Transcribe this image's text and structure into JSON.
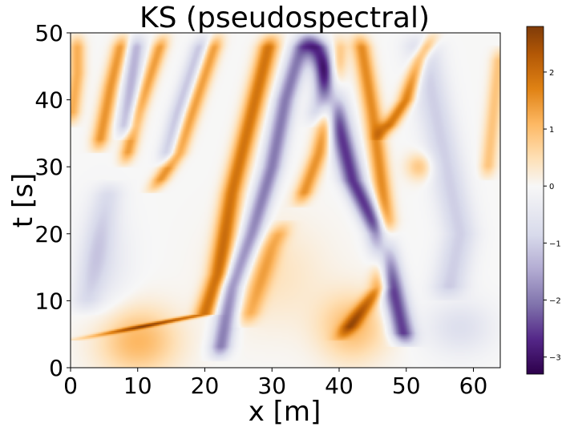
{
  "chart_data": {
    "type": "heatmap",
    "title": "KS (pseudospectral)",
    "xlabel": "x [m]",
    "ylabel": "t [s]",
    "xlim": [
      0,
      64
    ],
    "ylim": [
      0,
      50
    ],
    "xticks": [
      "0",
      "10",
      "20",
      "30",
      "40",
      "50",
      "60"
    ],
    "yticks": [
      "0",
      "10",
      "20",
      "30",
      "40",
      "50"
    ],
    "colorbar": {
      "range": [
        -3.3,
        2.8
      ],
      "ticks": [
        "2",
        "1",
        "0",
        "−1",
        "−2",
        "−3"
      ],
      "colormap": "PuOr_r",
      "colors": [
        "#2d004b",
        "#542788",
        "#8073ac",
        "#b2abd2",
        "#d8daeb",
        "#f7f7f7",
        "#fee0b6",
        "#fdb863",
        "#e08214",
        "#b35806",
        "#7f3b08"
      ]
    },
    "ridges": [
      {
        "sign": 1,
        "amp": 1.9,
        "width": 1.6,
        "points": [
          [
            0,
            4
          ],
          [
            20,
            8
          ],
          [
            22,
            14
          ],
          [
            24,
            26
          ],
          [
            26,
            34
          ],
          [
            28,
            42
          ],
          [
            30,
            50
          ]
        ]
      },
      {
        "sign": 1,
        "amp": 1.5,
        "width": 1.3,
        "points": [
          [
            12,
            26
          ],
          [
            16,
            32
          ],
          [
            18,
            38
          ],
          [
            20,
            44
          ],
          [
            22,
            50
          ]
        ]
      },
      {
        "sign": 1,
        "amp": 1.4,
        "width": 1.2,
        "points": [
          [
            8,
            30
          ],
          [
            10,
            38
          ],
          [
            12,
            44
          ],
          [
            14,
            50
          ]
        ]
      },
      {
        "sign": 1,
        "amp": 1.5,
        "width": 1.3,
        "points": [
          [
            4,
            32
          ],
          [
            6,
            42
          ],
          [
            8,
            50
          ]
        ]
      },
      {
        "sign": 1,
        "amp": 1.6,
        "width": 1.4,
        "points": [
          [
            40,
            4
          ],
          [
            46,
            12
          ],
          [
            47,
            22
          ],
          [
            46,
            30
          ],
          [
            45,
            38
          ],
          [
            44,
            44
          ],
          [
            43,
            50
          ]
        ]
      },
      {
        "sign": 1,
        "amp": 1.5,
        "width": 1.4,
        "points": [
          [
            34,
            24
          ],
          [
            37,
            32
          ],
          [
            39,
            40
          ],
          [
            40,
            50
          ]
        ]
      },
      {
        "sign": 1,
        "amp": 1.8,
        "width": 1.3,
        "points": [
          [
            46,
            34
          ],
          [
            50,
            40
          ],
          [
            52,
            46
          ],
          [
            54,
            50
          ]
        ]
      },
      {
        "sign": 1,
        "amp": 1.0,
        "width": 1.6,
        "points": [
          [
            26,
            6
          ],
          [
            28,
            12
          ],
          [
            30,
            18
          ],
          [
            32,
            22
          ]
        ]
      },
      {
        "sign": 1,
        "amp": 1.2,
        "width": 1.2,
        "points": [
          [
            0,
            36
          ],
          [
            1,
            44
          ],
          [
            1,
            50
          ]
        ]
      },
      {
        "sign": 1,
        "amp": 0.9,
        "width": 1.2,
        "points": [
          [
            62,
            28
          ],
          [
            63,
            38
          ],
          [
            64,
            48
          ]
        ]
      },
      {
        "sign": -1,
        "amp": 2.0,
        "width": 1.6,
        "points": [
          [
            22,
            1
          ],
          [
            24,
            12
          ],
          [
            27,
            20
          ],
          [
            30,
            30
          ],
          [
            32,
            40
          ],
          [
            35,
            50
          ]
        ]
      },
      {
        "sign": -1,
        "amp": 2.6,
        "width": 1.8,
        "points": [
          [
            50,
            3
          ],
          [
            48,
            12
          ],
          [
            46,
            20
          ],
          [
            42,
            28
          ],
          [
            40,
            36
          ],
          [
            38,
            44
          ],
          [
            36,
            50
          ]
        ]
      },
      {
        "sign": -1,
        "amp": 1.4,
        "width": 1.4,
        "points": [
          [
            8,
            34
          ],
          [
            9,
            42
          ],
          [
            10,
            50
          ]
        ]
      },
      {
        "sign": -1,
        "amp": 1.2,
        "width": 1.4,
        "points": [
          [
            14,
            30
          ],
          [
            16,
            38
          ],
          [
            18,
            44
          ],
          [
            20,
            50
          ]
        ]
      },
      {
        "sign": -1,
        "amp": 1.0,
        "width": 2.6,
        "points": [
          [
            56,
            10
          ],
          [
            58,
            20
          ],
          [
            56,
            30
          ],
          [
            54,
            40
          ],
          [
            52,
            50
          ]
        ]
      },
      {
        "sign": -1,
        "amp": 0.7,
        "width": 2.2,
        "points": [
          [
            2,
            8
          ],
          [
            4,
            18
          ],
          [
            6,
            28
          ]
        ]
      },
      {
        "sign": -1,
        "amp": 0.8,
        "width": 1.5,
        "points": [
          [
            36,
            36
          ],
          [
            38,
            44
          ],
          [
            40,
            50
          ]
        ]
      }
    ],
    "blobs": [
      {
        "x": 10,
        "t": 4,
        "sx": 6,
        "st": 5,
        "amp": 1.1
      },
      {
        "x": 42,
        "t": 6,
        "sx": 5,
        "st": 5,
        "amp": 1.0
      },
      {
        "x": 30,
        "t": 14,
        "sx": 8,
        "st": 8,
        "amp": 0.4
      },
      {
        "x": 58,
        "t": 6,
        "sx": 5,
        "st": 4,
        "amp": -0.7
      },
      {
        "x": 5,
        "t": 16,
        "sx": 4,
        "st": 8,
        "amp": -0.5
      },
      {
        "x": 52,
        "t": 30,
        "sx": 2,
        "st": 2,
        "amp": 0.9
      }
    ]
  }
}
